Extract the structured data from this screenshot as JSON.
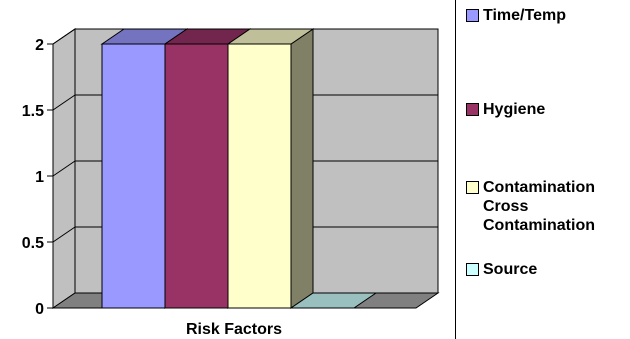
{
  "chart_data": {
    "type": "bar",
    "categories": [
      "Risk Factors"
    ],
    "xlabel": "Risk Factors",
    "ylabel": "",
    "ylim": [
      0,
      2
    ],
    "yticks": [
      0,
      0.5,
      1,
      1.5,
      2
    ],
    "ytick_labels": [
      "0",
      "0.5",
      "1",
      "1.5",
      "2"
    ],
    "grid": true,
    "three_d": true,
    "legend_position": "right",
    "series": [
      {
        "name": "Time/Temp",
        "values": [
          2
        ],
        "color": "#9999ff"
      },
      {
        "name": "Hygiene",
        "values": [
          2
        ],
        "color": "#993366"
      },
      {
        "name": "Contamination Cross Contamination",
        "values": [
          2
        ],
        "color": "#ffffcc"
      },
      {
        "name": "Source",
        "values": [
          0
        ],
        "color": "#ccffff"
      }
    ]
  },
  "legend": {
    "items": [
      {
        "label": "Time/Temp"
      },
      {
        "label": "Hygiene"
      },
      {
        "label": "Contamination Cross Contamination"
      },
      {
        "label": "Source"
      }
    ]
  }
}
